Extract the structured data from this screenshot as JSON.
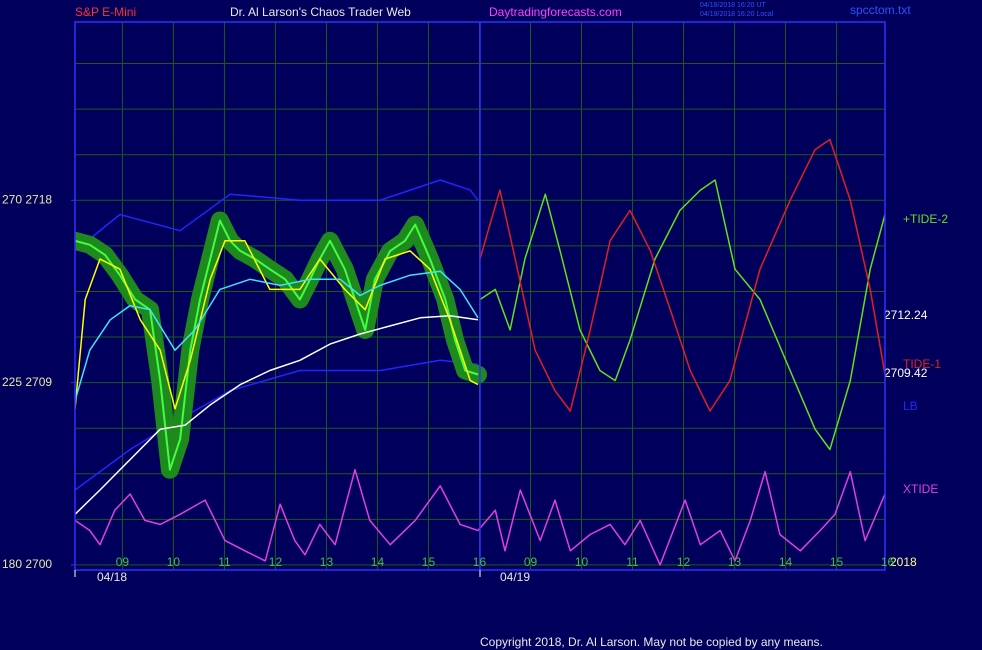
{
  "chart_data": {
    "type": "line",
    "symbol": "S&P E-Mini",
    "title": "Dr. Al Larson's Chaos Trader Web",
    "site": "Daytradingforecasts.com",
    "timestamps": [
      "04/18/2018 16:20 UT",
      "04/19/2018 16:20 Local"
    ],
    "file": "spcctom.txt",
    "copyright": "Copyright 2018, Dr. Al Larson. May not be copied by any means.",
    "dates": [
      "04/18",
      "04/19"
    ],
    "annotations": [
      "2712.24",
      "2709.42",
      "2018"
    ],
    "xlim": [
      8.07,
      23.95
    ],
    "ylim": [
      2699.75,
      2726.8
    ],
    "xticks": [
      {
        "value": 9,
        "label": "09"
      },
      10,
      11,
      12,
      13,
      14,
      15,
      16,
      {
        "value": 17,
        "label": "09"
      },
      {
        "value": 18,
        "label": "10"
      },
      {
        "value": 19,
        "label": "11"
      },
      {
        "value": 20,
        "label": "12"
      },
      {
        "value": 21,
        "label": "13"
      },
      {
        "value": 22,
        "label": "14"
      },
      {
        "value": 23,
        "label": "15"
      },
      {
        "value": 24,
        "label": "16"
      }
    ],
    "yticks": [
      {
        "value": 2718,
        "label": "270  2718"
      },
      {
        "value": 2709,
        "label": "225  2709"
      },
      {
        "value": 2700,
        "label": "180  2700"
      }
    ],
    "ygrid": [
      2700,
      2702.25,
      2704.5,
      2706.75,
      2709,
      2711.25,
      2713.5,
      2715.75,
      2718,
      2720.25,
      2722.5,
      2724.75
    ],
    "grid": true,
    "grid_color": "#1a5a1a",
    "series": [
      {
        "color": "#40ff40",
        "halo_color": "#1e8a1e",
        "x": [
          8.07,
          8.36,
          8.66,
          8.95,
          9.25,
          9.54,
          9.74,
          9.93,
          10.13,
          10.33,
          10.52,
          10.72,
          10.91,
          11.11,
          11.31,
          11.6,
          11.89,
          12.19,
          12.48,
          12.68,
          12.87,
          13.07,
          13.36,
          13.56,
          13.76,
          13.95,
          14.25,
          14.54,
          14.74,
          15.03,
          15.33,
          15.52,
          15.72,
          15.97
        ],
        "values": [
          2716.0,
          2715.8,
          2715.3,
          2714.3,
          2713.1,
          2712.6,
          2709.1,
          2704.7,
          2706.2,
          2710.6,
          2713.1,
          2715.1,
          2717.0,
          2716.0,
          2715.5,
          2715.1,
          2714.6,
          2714.1,
          2713.1,
          2714.1,
          2715.1,
          2716.0,
          2714.6,
          2713.1,
          2711.6,
          2714.1,
          2715.5,
          2716.0,
          2716.8,
          2715.1,
          2713.1,
          2711.1,
          2709.6,
          2709.4
        ]
      },
      {
        "color": "#ffff00",
        "x": [
          8.07,
          8.27,
          8.56,
          8.95,
          9.35,
          9.74,
          10.03,
          10.33,
          10.72,
          11.01,
          11.4,
          11.89,
          12.48,
          12.87,
          13.36,
          13.76,
          14.15,
          14.64,
          15.03,
          15.42,
          15.82,
          15.97
        ],
        "values": [
          2707.7,
          2713.1,
          2715.1,
          2714.6,
          2712.1,
          2710.6,
          2707.7,
          2710.1,
          2714.1,
          2716.0,
          2716.0,
          2713.6,
          2713.6,
          2715.1,
          2713.6,
          2712.6,
          2715.1,
          2715.5,
          2714.6,
          2712.1,
          2709.1,
          2708.9
        ]
      },
      {
        "color": "#40e0ff",
        "x": [
          8.07,
          8.36,
          8.76,
          9.15,
          9.54,
          10.03,
          10.42,
          10.91,
          11.5,
          12.09,
          12.68,
          13.27,
          13.66,
          14.05,
          14.64,
          15.23,
          15.62,
          15.97
        ],
        "values": [
          2708.1,
          2710.6,
          2712.1,
          2712.8,
          2712.6,
          2710.6,
          2711.6,
          2713.6,
          2714.1,
          2713.8,
          2714.1,
          2714.1,
          2713.3,
          2713.8,
          2714.3,
          2714.5,
          2713.6,
          2712.2
        ]
      },
      {
        "color": "#ffffff",
        "x": [
          8.07,
          8.56,
          9.15,
          9.74,
          10.23,
          10.72,
          11.31,
          11.89,
          12.48,
          13.07,
          13.66,
          14.25,
          14.84,
          15.42,
          15.97
        ],
        "values": [
          2702.5,
          2703.7,
          2705.2,
          2706.7,
          2706.9,
          2707.9,
          2708.9,
          2709.6,
          2710.1,
          2710.9,
          2711.4,
          2711.8,
          2712.2,
          2712.3,
          2712.1
        ]
      },
      {
        "color": "#2424ff",
        "x": [
          8.07,
          8.95,
          10.13,
          11.11,
          12.48,
          14.05,
          15.23,
          15.82,
          15.97
        ],
        "values": [
          2715.5,
          2717.3,
          2716.5,
          2718.3,
          2718.0,
          2718.0,
          2719.0,
          2718.5,
          2718.0
        ]
      },
      {
        "name": "LB",
        "color": "#2424ff",
        "x": [
          8.07,
          9.15,
          10.13,
          11.11,
          12.48,
          14.05,
          15.23,
          15.97
        ],
        "values": [
          2703.7,
          2705.7,
          2707.2,
          2708.6,
          2709.6,
          2709.6,
          2710.1,
          2709.9
        ]
      },
      {
        "name": "+TIDE-2",
        "color": "#60e020",
        "x": [
          16.01,
          16.31,
          16.6,
          16.89,
          17.29,
          17.58,
          17.97,
          18.36,
          18.66,
          18.95,
          19.44,
          19.93,
          20.33,
          20.62,
          21.01,
          21.5,
          22.09,
          22.58,
          22.87,
          23.27,
          23.66,
          23.95
        ],
        "values": [
          2713.1,
          2713.6,
          2711.6,
          2715.1,
          2718.3,
          2715.5,
          2711.6,
          2709.6,
          2709.1,
          2711.1,
          2715.1,
          2717.5,
          2718.5,
          2719.0,
          2714.6,
          2713.1,
          2709.6,
          2706.7,
          2705.7,
          2709.1,
          2714.6,
          2717.3
        ]
      },
      {
        "name": "TIDE-1",
        "color": "#e02020",
        "x": [
          16.01,
          16.4,
          16.7,
          17.09,
          17.48,
          17.78,
          18.17,
          18.56,
          18.95,
          19.35,
          19.74,
          20.13,
          20.52,
          20.91,
          21.5,
          22.09,
          22.58,
          22.87,
          23.27,
          23.66,
          23.95
        ],
        "values": [
          2715.1,
          2718.5,
          2715.1,
          2710.6,
          2708.6,
          2707.6,
          2711.6,
          2716.0,
          2717.5,
          2715.5,
          2712.6,
          2709.6,
          2707.6,
          2709.1,
          2714.6,
          2718.0,
          2720.5,
          2721.0,
          2718.0,
          2713.6,
          2709.4
        ]
      },
      {
        "name": "XTIDE",
        "color": "#e040e0",
        "x": [
          8.07,
          8.36,
          8.56,
          8.85,
          9.15,
          9.44,
          9.74,
          10.13,
          10.62,
          11.01,
          11.4,
          11.8,
          12.09,
          12.38,
          12.58,
          12.87,
          13.17,
          13.56,
          13.85,
          14.25,
          14.74,
          15.23,
          15.62,
          15.97,
          16.31,
          16.5,
          16.8,
          17.19,
          17.48,
          17.78,
          18.17,
          18.56,
          18.85,
          19.15,
          19.54,
          20.03,
          20.33,
          20.72,
          21.01,
          21.31,
          21.6,
          21.89,
          22.29,
          22.68,
          22.97,
          23.27,
          23.56,
          23.95
        ],
        "values": [
          2702.2,
          2701.7,
          2701.0,
          2702.7,
          2703.5,
          2702.2,
          2702.0,
          2702.5,
          2703.2,
          2701.2,
          2700.7,
          2700.2,
          2703.0,
          2701.2,
          2700.5,
          2702.0,
          2701.0,
          2704.7,
          2702.2,
          2701.0,
          2702.2,
          2703.9,
          2702.0,
          2701.7,
          2702.7,
          2700.7,
          2703.7,
          2701.2,
          2703.2,
          2700.7,
          2701.5,
          2702.0,
          2701.0,
          2702.2,
          2700.0,
          2703.2,
          2701.0,
          2701.7,
          2700.2,
          2702.2,
          2704.6,
          2701.5,
          2700.7,
          2701.7,
          2702.5,
          2704.6,
          2701.2,
          2703.5
        ]
      }
    ]
  }
}
